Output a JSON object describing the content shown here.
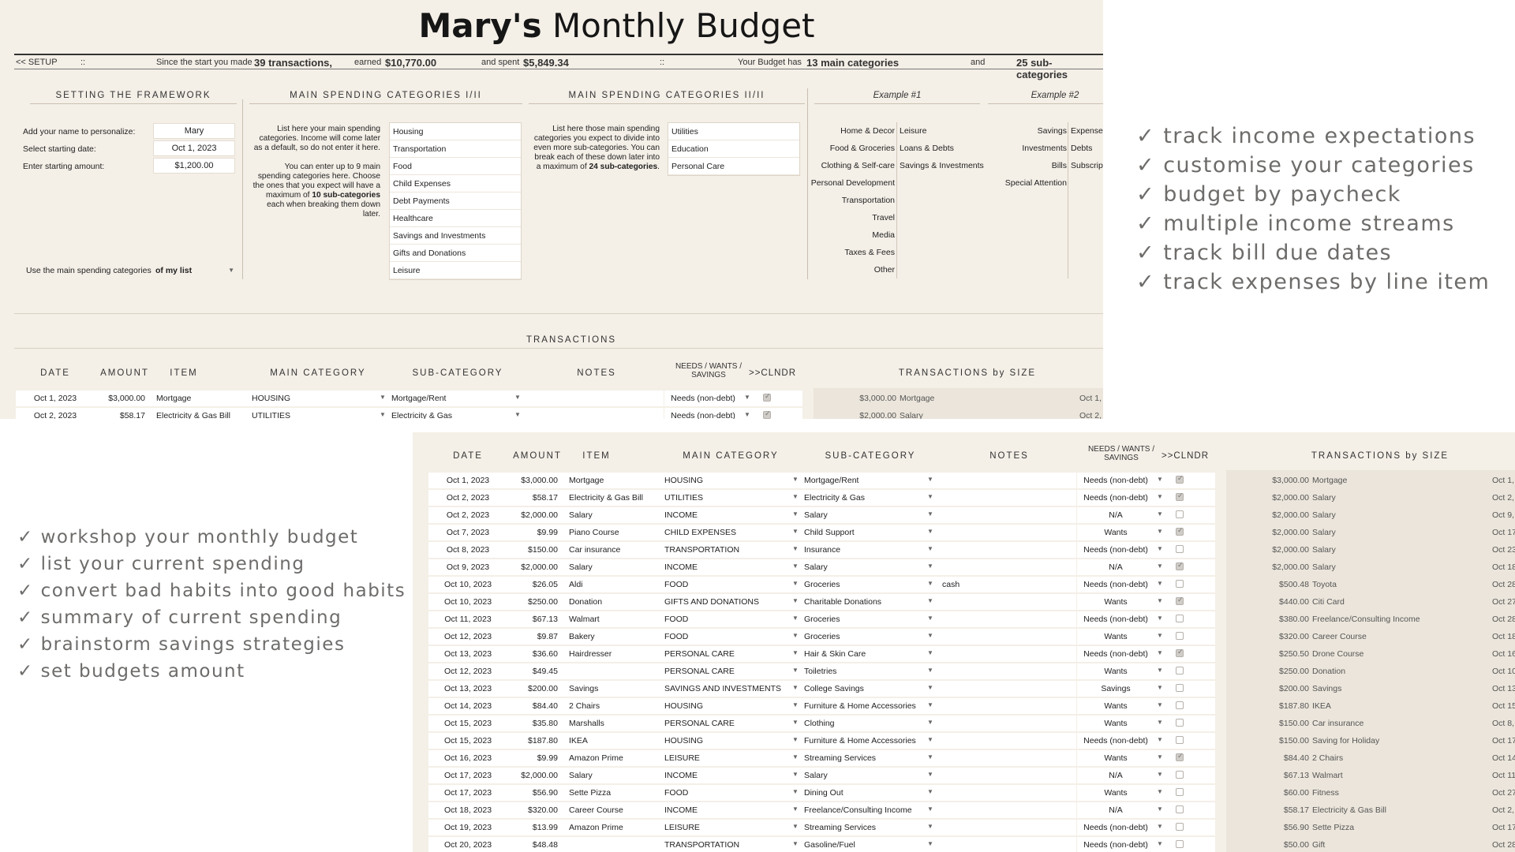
{
  "title": {
    "name": "Mary's",
    "rest": "Monthly Budget"
  },
  "status": {
    "setup": "<< SETUP",
    "sep1": "::",
    "since": "Since the start you made",
    "transactions": "39 transactions,",
    "earned_label": "earned",
    "earned": "$10,770.00",
    "spent_label": "and spent",
    "spent": "$5,849.34",
    "sep2": "::",
    "budget_has": "Your Budget has",
    "main_cats": "13 main categories",
    "and": "and",
    "sub_cats": "25 sub-categories"
  },
  "framework": {
    "heading": "SETTING THE FRAMEWORK",
    "name_label": "Add your name to personalize:",
    "name_value": "Mary",
    "date_label": "Select starting date:",
    "date_value": "Oct 1, 2023",
    "amount_label": "Enter starting amount:",
    "amount_value": "$1,200.00",
    "use_label": "Use the main spending categories",
    "use_value": "of my list"
  },
  "main_cats_1": {
    "heading": "MAIN SPENDING CATEGORIES I/II",
    "para_a": "List here your main spending categories. Income will come later as a default, so do not enter it here.",
    "para_b1": "You can enter up to 9 main spending categories here. Choose the ones that you expect will have a maximum of",
    "para_b_bold": "10 sub-categories",
    "para_b2": "each when breaking them down later.",
    "items": [
      "Housing",
      "Transportation",
      "Food",
      "Child Expenses",
      "Debt Payments",
      "Healthcare",
      "Savings and Investments",
      "Gifts and Donations",
      "Leisure"
    ]
  },
  "main_cats_2": {
    "heading": "MAIN SPENDING CATEGORIES II/II",
    "para1": "List here those main spending categories you expect to divide into even more sub-categories. You can break each of these down later into a maximum of",
    "para_bold": "24 sub-categories",
    "para_end": ".",
    "items": [
      "Utilities",
      "Education",
      "Personal Care"
    ]
  },
  "example1": {
    "heading": "Example #1",
    "left": [
      "Home & Decor",
      "Food & Groceries",
      "Clothing & Self-care",
      "Personal Development",
      "Transportation",
      "Travel",
      "Media",
      "Taxes & Fees",
      "Other"
    ],
    "right": [
      "Leisure",
      "Loans & Debts",
      "Savings & Investments"
    ]
  },
  "example2": {
    "heading": "Example #2",
    "left": [
      "Savings",
      "Investments",
      "Bills",
      "Special Attention"
    ],
    "right": [
      "Expense",
      "Debts",
      "Subscrip"
    ]
  },
  "transactions_heading": "TRANSACTIONS",
  "columns": {
    "date": "DATE",
    "amount": "AMOUNT",
    "item": "ITEM",
    "main": "MAIN CATEGORY",
    "sub": "SUB-CATEGORY",
    "notes": "NOTES",
    "nws": "NEEDS / WANTS / SAVINGS",
    "cal": ">>CLNDR",
    "by_size": "TRANSACTIONS by SIZE"
  },
  "transactions": [
    {
      "date": "Oct 1, 2023",
      "amount": "$3,000.00",
      "item": "Mortgage",
      "main": "HOUSING",
      "sub": "Mortgage/Rent",
      "notes": "",
      "nws": "Needs (non-debt)",
      "cal": true
    },
    {
      "date": "Oct 2, 2023",
      "amount": "$58.17",
      "item": "Electricity & Gas Bill",
      "main": "UTILITIES",
      "sub": "Electricity & Gas",
      "notes": "",
      "nws": "Needs (non-debt)",
      "cal": true
    },
    {
      "date": "Oct 2, 2023",
      "amount": "$2,000.00",
      "item": "Salary",
      "main": "INCOME",
      "sub": "Salary",
      "notes": "",
      "nws": "N/A",
      "cal": false
    },
    {
      "date": "Oct 7, 2023",
      "amount": "$9.99",
      "item": "Piano Course",
      "main": "CHILD EXPENSES",
      "sub": "Child Support",
      "notes": "",
      "nws": "Wants",
      "cal": true
    },
    {
      "date": "Oct 8, 2023",
      "amount": "$150.00",
      "item": "Car insurance",
      "main": "TRANSPORTATION",
      "sub": "Insurance",
      "notes": "",
      "nws": "Needs (non-debt)",
      "cal": false
    },
    {
      "date": "Oct 9, 2023",
      "amount": "$2,000.00",
      "item": "Salary",
      "main": "INCOME",
      "sub": "Salary",
      "notes": "",
      "nws": "N/A",
      "cal": true
    },
    {
      "date": "Oct 10, 2023",
      "amount": "$26.05",
      "item": "Aldi",
      "main": "FOOD",
      "sub": "Groceries",
      "notes": "cash",
      "nws": "Needs (non-debt)",
      "cal": false
    },
    {
      "date": "Oct 10, 2023",
      "amount": "$250.00",
      "item": "Donation",
      "main": "GIFTS AND DONATIONS",
      "sub": "Charitable Donations",
      "notes": "",
      "nws": "Wants",
      "cal": true
    },
    {
      "date": "Oct 11, 2023",
      "amount": "$67.13",
      "item": "Walmart",
      "main": "FOOD",
      "sub": "Groceries",
      "notes": "",
      "nws": "Needs (non-debt)",
      "cal": false
    },
    {
      "date": "Oct 12, 2023",
      "amount": "$9.87",
      "item": "Bakery",
      "main": "FOOD",
      "sub": "Groceries",
      "notes": "",
      "nws": "Wants",
      "cal": false
    },
    {
      "date": "Oct 13, 2023",
      "amount": "$36.60",
      "item": "Hairdresser",
      "main": "PERSONAL CARE",
      "sub": "Hair & Skin Care",
      "notes": "",
      "nws": "Needs (non-debt)",
      "cal": true
    },
    {
      "date": "Oct 12, 2023",
      "amount": "$49.45",
      "item": "",
      "main": "PERSONAL CARE",
      "sub": "Toiletries",
      "notes": "",
      "nws": "Wants",
      "cal": false
    },
    {
      "date": "Oct 13, 2023",
      "amount": "$200.00",
      "item": "Savings",
      "main": "SAVINGS AND INVESTMENTS",
      "sub": "College Savings",
      "notes": "",
      "nws": "Savings",
      "cal": false
    },
    {
      "date": "Oct 14, 2023",
      "amount": "$84.40",
      "item": "2 Chairs",
      "main": "HOUSING",
      "sub": "Furniture & Home Accessories",
      "notes": "",
      "nws": "Wants",
      "cal": false
    },
    {
      "date": "Oct 15, 2023",
      "amount": "$35.80",
      "item": "Marshalls",
      "main": "PERSONAL CARE",
      "sub": "Clothing",
      "notes": "",
      "nws": "Wants",
      "cal": false
    },
    {
      "date": "Oct 15, 2023",
      "amount": "$187.80",
      "item": "IKEA",
      "main": "HOUSING",
      "sub": "Furniture & Home Accessories",
      "notes": "",
      "nws": "Needs (non-debt)",
      "cal": false
    },
    {
      "date": "Oct 16, 2023",
      "amount": "$9.99",
      "item": "Amazon Prime",
      "main": "LEISURE",
      "sub": "Streaming Services",
      "notes": "",
      "nws": "Wants",
      "cal": true
    },
    {
      "date": "Oct 17, 2023",
      "amount": "$2,000.00",
      "item": "Salary",
      "main": "INCOME",
      "sub": "Salary",
      "notes": "",
      "nws": "N/A",
      "cal": false
    },
    {
      "date": "Oct 17, 2023",
      "amount": "$56.90",
      "item": "Sette Pizza",
      "main": "FOOD",
      "sub": "Dining Out",
      "notes": "",
      "nws": "Wants",
      "cal": false
    },
    {
      "date": "Oct 18, 2023",
      "amount": "$320.00",
      "item": "Career Course",
      "main": "INCOME",
      "sub": "Freelance/Consulting Income",
      "notes": "",
      "nws": "N/A",
      "cal": false
    },
    {
      "date": "Oct 19, 2023",
      "amount": "$13.99",
      "item": "Amazon Prime",
      "main": "LEISURE",
      "sub": "Streaming Services",
      "notes": "",
      "nws": "Needs (non-debt)",
      "cal": false
    },
    {
      "date": "Oct 20, 2023",
      "amount": "$48.48",
      "item": "",
      "main": "TRANSPORTATION",
      "sub": "Gasoline/Fuel",
      "notes": "",
      "nws": "Needs (non-debt)",
      "cal": false
    }
  ],
  "by_size": [
    {
      "amount": "$3,000.00",
      "item": "Mortgage",
      "date": "Oct 1,"
    },
    {
      "amount": "$2,000.00",
      "item": "Salary",
      "date": "Oct 2,"
    },
    {
      "amount": "$2,000.00",
      "item": "Salary",
      "date": "Oct 9,"
    },
    {
      "amount": "$2,000.00",
      "item": "Salary",
      "date": "Oct 17,"
    },
    {
      "amount": "$2,000.00",
      "item": "Salary",
      "date": "Oct 23,"
    },
    {
      "amount": "$2,000.00",
      "item": "Salary",
      "date": "Oct 18,"
    },
    {
      "amount": "$500.48",
      "item": "Toyota",
      "date": "Oct 28,"
    },
    {
      "amount": "$440.00",
      "item": "Citi Card",
      "date": "Oct 27,"
    },
    {
      "amount": "$380.00",
      "item": "Freelance/Consulting Income",
      "date": "Oct 28,"
    },
    {
      "amount": "$320.00",
      "item": "Career Course",
      "date": "Oct 18,"
    },
    {
      "amount": "$250.50",
      "item": "Drone Course",
      "date": "Oct 16,"
    },
    {
      "amount": "$250.00",
      "item": "Donation",
      "date": "Oct 10,"
    },
    {
      "amount": "$200.00",
      "item": "Savings",
      "date": "Oct 13,"
    },
    {
      "amount": "$187.80",
      "item": "IKEA",
      "date": "Oct 15,"
    },
    {
      "amount": "$150.00",
      "item": "Car insurance",
      "date": "Oct 8,"
    },
    {
      "amount": "$150.00",
      "item": "Saving for Holiday",
      "date": "Oct 17,"
    },
    {
      "amount": "$84.40",
      "item": "2 Chairs",
      "date": "Oct 14,"
    },
    {
      "amount": "$67.13",
      "item": "Walmart",
      "date": "Oct 11,"
    },
    {
      "amount": "$60.00",
      "item": "Fitness",
      "date": "Oct 27,"
    },
    {
      "amount": "$58.17",
      "item": "Electricity & Gas Bill",
      "date": "Oct 2,"
    },
    {
      "amount": "$56.90",
      "item": "Sette Pizza",
      "date": "Oct 17,"
    },
    {
      "amount": "$50.00",
      "item": "Gift",
      "date": "Oct 28,"
    }
  ],
  "features_top": [
    "✓ track income expectations",
    "✓ customise your categories",
    "✓ budget by paycheck",
    "✓ multiple income streams",
    "✓ track bill due dates",
    "✓ track expenses by line item"
  ],
  "features_bottom": [
    "✓ workshop your monthly budget",
    "✓ list your current spending",
    "✓ convert bad habits into good habits",
    "✓ summary of current spending",
    "✓ brainstorm savings strategies",
    "✓ set budgets amount"
  ],
  "colors": {
    "sheet_bg": "#f4efe7",
    "size_panel": "#ebe5db",
    "feature_text": "#6e6c6a"
  }
}
